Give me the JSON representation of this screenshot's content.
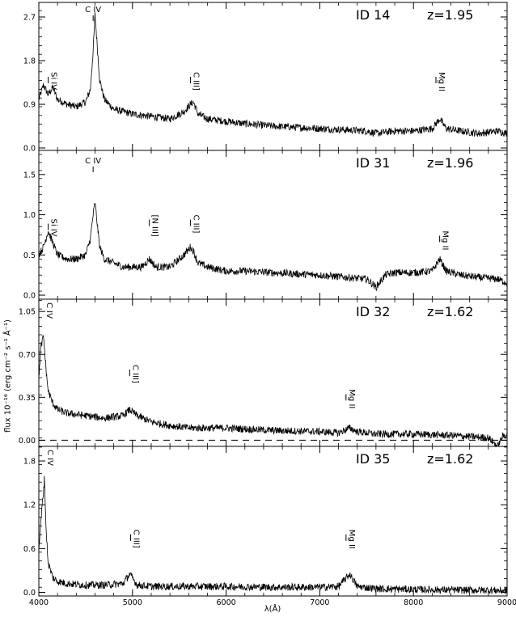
{
  "figure": {
    "ylabel": "flux 10⁻¹⁶ (erg cm⁻² s⁻¹ Å⁻¹)",
    "xlabel": "λ(Å)"
  },
  "chart_data": [
    {
      "type": "line",
      "id_label": "ID  14",
      "z_label": "z=1.95",
      "xlim": [
        4000,
        9000
      ],
      "ylim": [
        -0.05,
        3.0
      ],
      "yticks": [
        0.0,
        0.9,
        1.8,
        2.7
      ],
      "ytick_labels": [
        "0.0",
        "0.9",
        "1.8",
        "2.7"
      ],
      "xticks": [
        4000,
        5000,
        6000,
        7000,
        8000,
        9000
      ],
      "zero_dashed": false,
      "x": [
        4000,
        4050,
        4100,
        4150,
        4200,
        4300,
        4400,
        4500,
        4550,
        4580,
        4600,
        4650,
        4700,
        4800,
        4900,
        5000,
        5200,
        5400,
        5550,
        5620,
        5650,
        5700,
        5800,
        6000,
        6200,
        6500,
        7000,
        7500,
        7600,
        7800,
        8000,
        8200,
        8280,
        8350,
        8500,
        8700,
        8900,
        9000
      ],
      "y": [
        1.0,
        1.3,
        1.1,
        1.25,
        1.0,
        0.9,
        0.85,
        0.95,
        1.2,
        2.0,
        2.75,
        1.4,
        1.0,
        0.8,
        0.75,
        0.7,
        0.65,
        0.6,
        0.75,
        0.9,
        0.95,
        0.7,
        0.6,
        0.55,
        0.5,
        0.45,
        0.4,
        0.35,
        0.3,
        0.35,
        0.35,
        0.4,
        0.6,
        0.4,
        0.35,
        0.3,
        0.35,
        0.3
      ],
      "annotations": [
        {
          "text": "Si IV",
          "x": 4100,
          "y": 1.4,
          "style": "vertical"
        },
        {
          "text": "C IV",
          "x": 4580,
          "y": 2.9,
          "style": "horizontal"
        },
        {
          "text": "C III]",
          "x": 5620,
          "y": 1.4,
          "style": "vertical"
        },
        {
          "text": "Mg II",
          "x": 8240,
          "y": 1.4,
          "style": "vertical"
        }
      ]
    },
    {
      "type": "line",
      "id_label": "ID  31",
      "z_label": "z=1.96",
      "xlim": [
        4000,
        9000
      ],
      "ylim": [
        -0.05,
        1.8
      ],
      "yticks": [
        0.0,
        0.5,
        1.0,
        1.5
      ],
      "ytick_labels": [
        "0.0",
        "0.5",
        "1.0",
        "1.5"
      ],
      "xticks": [
        4000,
        5000,
        6000,
        7000,
        8000,
        9000
      ],
      "zero_dashed": false,
      "x": [
        4000,
        4050,
        4100,
        4150,
        4200,
        4300,
        4400,
        4500,
        4550,
        4580,
        4600,
        4650,
        4700,
        4800,
        4900,
        5000,
        5100,
        5180,
        5250,
        5400,
        5550,
        5620,
        5650,
        5700,
        5800,
        6000,
        6200,
        6500,
        7000,
        7500,
        7600,
        7700,
        7800,
        8000,
        8200,
        8280,
        8350,
        8500,
        8700,
        8900,
        9000
      ],
      "y": [
        0.5,
        0.6,
        0.8,
        0.65,
        0.5,
        0.45,
        0.45,
        0.5,
        0.7,
        1.0,
        1.15,
        0.6,
        0.45,
        0.4,
        0.35,
        0.35,
        0.35,
        0.45,
        0.35,
        0.35,
        0.5,
        0.6,
        0.55,
        0.4,
        0.35,
        0.3,
        0.3,
        0.28,
        0.25,
        0.2,
        0.1,
        0.25,
        0.28,
        0.28,
        0.3,
        0.45,
        0.3,
        0.25,
        0.22,
        0.2,
        0.15
      ],
      "annotations": [
        {
          "text": "Si IV",
          "x": 4100,
          "y": 0.85,
          "style": "vertical"
        },
        {
          "text": "C IV",
          "x": 4580,
          "y": 1.7,
          "style": "horizontal"
        },
        {
          "text": "[N III]",
          "x": 5180,
          "y": 0.9,
          "style": "vertical"
        },
        {
          "text": "C III]",
          "x": 5620,
          "y": 0.9,
          "style": "vertical"
        },
        {
          "text": "Mg II",
          "x": 8280,
          "y": 0.7,
          "style": "vertical"
        }
      ]
    },
    {
      "type": "line",
      "id_label": "ID  32",
      "z_label": "z=1.62",
      "xlim": [
        4000,
        9000
      ],
      "ylim": [
        -0.05,
        1.15
      ],
      "yticks": [
        0.0,
        0.35,
        0.7,
        1.05
      ],
      "ytick_labels": [
        "0.00",
        "0.35",
        "0.70",
        "1.05"
      ],
      "xticks": [
        4000,
        5000,
        6000,
        7000,
        8000,
        9000
      ],
      "zero_dashed": true,
      "x": [
        4000,
        4020,
        4050,
        4080,
        4100,
        4150,
        4200,
        4300,
        4500,
        4700,
        4900,
        4970,
        5050,
        5200,
        5400,
        5600,
        6000,
        6500,
        7000,
        7200,
        7320,
        7400,
        7600,
        8000,
        8400,
        8800,
        8900,
        8950,
        9000
      ],
      "y": [
        0.5,
        0.75,
        0.85,
        0.55,
        0.4,
        0.3,
        0.25,
        0.22,
        0.2,
        0.18,
        0.2,
        0.25,
        0.2,
        0.15,
        0.12,
        0.1,
        0.1,
        0.08,
        0.07,
        0.06,
        0.1,
        0.07,
        0.05,
        0.05,
        0.04,
        0.02,
        -0.05,
        0.03,
        0.05
      ],
      "annotations": [
        {
          "text": "C IV",
          "x": 4050,
          "y": 0.95,
          "style": "vertical-top"
        },
        {
          "text": "C III]",
          "x": 4970,
          "y": 0.55,
          "style": "vertical"
        },
        {
          "text": "Mg II",
          "x": 7280,
          "y": 0.35,
          "style": "vertical"
        }
      ]
    },
    {
      "type": "line",
      "id_label": "ID  35",
      "z_label": "z=1.62",
      "xlim": [
        4000,
        9000
      ],
      "ylim": [
        -0.05,
        2.0
      ],
      "yticks": [
        0.0,
        0.6,
        1.2,
        1.8
      ],
      "ytick_labels": [
        "0.0",
        "0.6",
        "1.2",
        "1.8"
      ],
      "xticks": [
        4000,
        5000,
        6000,
        7000,
        8000,
        9000
      ],
      "xtick_labels": [
        "4000",
        "5000",
        "6000",
        "7000",
        "8000",
        "9000"
      ],
      "zero_dashed": false,
      "x": [
        4000,
        4030,
        4060,
        4080,
        4100,
        4150,
        4200,
        4300,
        4500,
        4700,
        4900,
        4970,
        5050,
        5200,
        5500,
        6000,
        6500,
        7000,
        7200,
        7320,
        7400,
        7600,
        8000,
        8500,
        8800,
        9000
      ],
      "y": [
        0.6,
        1.1,
        1.55,
        0.8,
        0.4,
        0.2,
        0.15,
        0.12,
        0.1,
        0.1,
        0.12,
        0.25,
        0.1,
        0.08,
        0.08,
        0.08,
        0.07,
        0.07,
        0.08,
        0.25,
        0.08,
        0.05,
        0.04,
        0.03,
        0.03,
        0.02
      ],
      "annotations": [
        {
          "text": "C IV",
          "x": 4060,
          "y": 1.7,
          "style": "vertical-top"
        },
        {
          "text": "C III]",
          "x": 4980,
          "y": 0.75,
          "style": "vertical"
        },
        {
          "text": "Mg II",
          "x": 7280,
          "y": 0.75,
          "style": "vertical"
        }
      ]
    }
  ]
}
